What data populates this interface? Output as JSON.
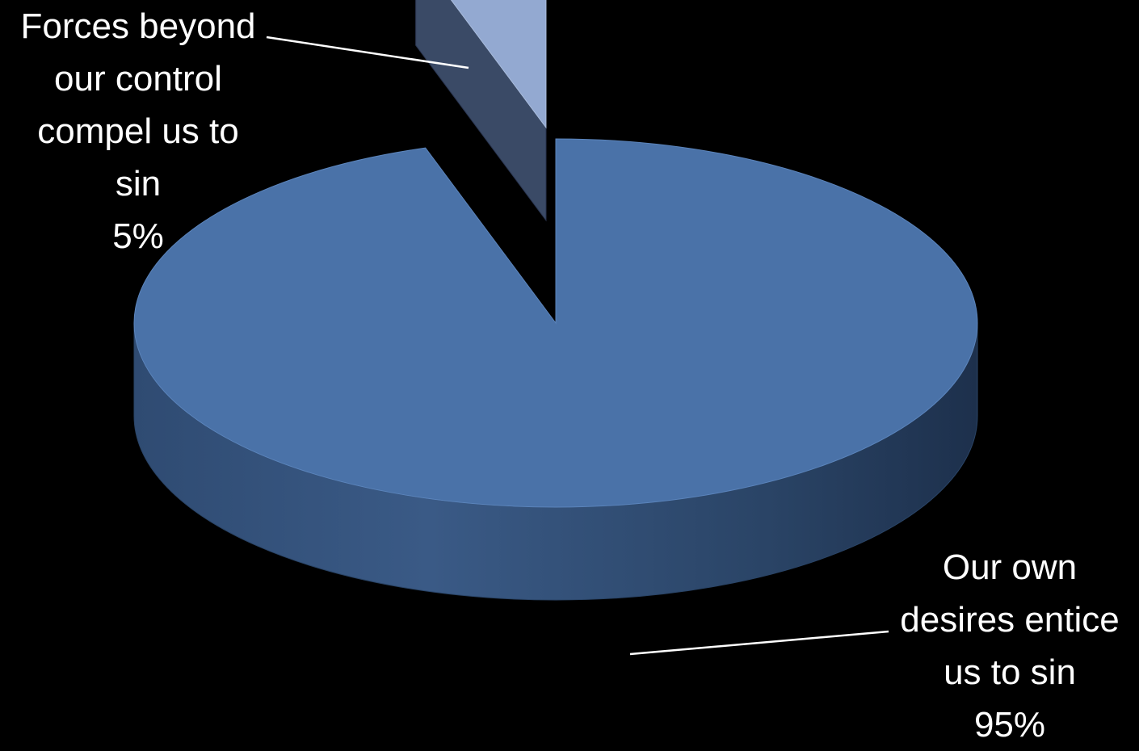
{
  "chart_data": {
    "type": "pie",
    "style": "3d-exploded",
    "title": "",
    "slices": [
      {
        "label_lines": [
          "Forces beyond",
          "our control",
          "compel us to",
          "sin"
        ],
        "value": 5,
        "value_label": "5%",
        "color": "#93a9d1",
        "exploded": true
      },
      {
        "label_lines": [
          "Our own",
          "desires entice",
          "us to sin"
        ],
        "value": 95,
        "value_label": "95%",
        "color": "#4a72a8",
        "exploded": false
      }
    ],
    "legend": "none"
  },
  "colors": {
    "background": "#000000",
    "text": "#ffffff",
    "leader_line": "#ffffff"
  }
}
